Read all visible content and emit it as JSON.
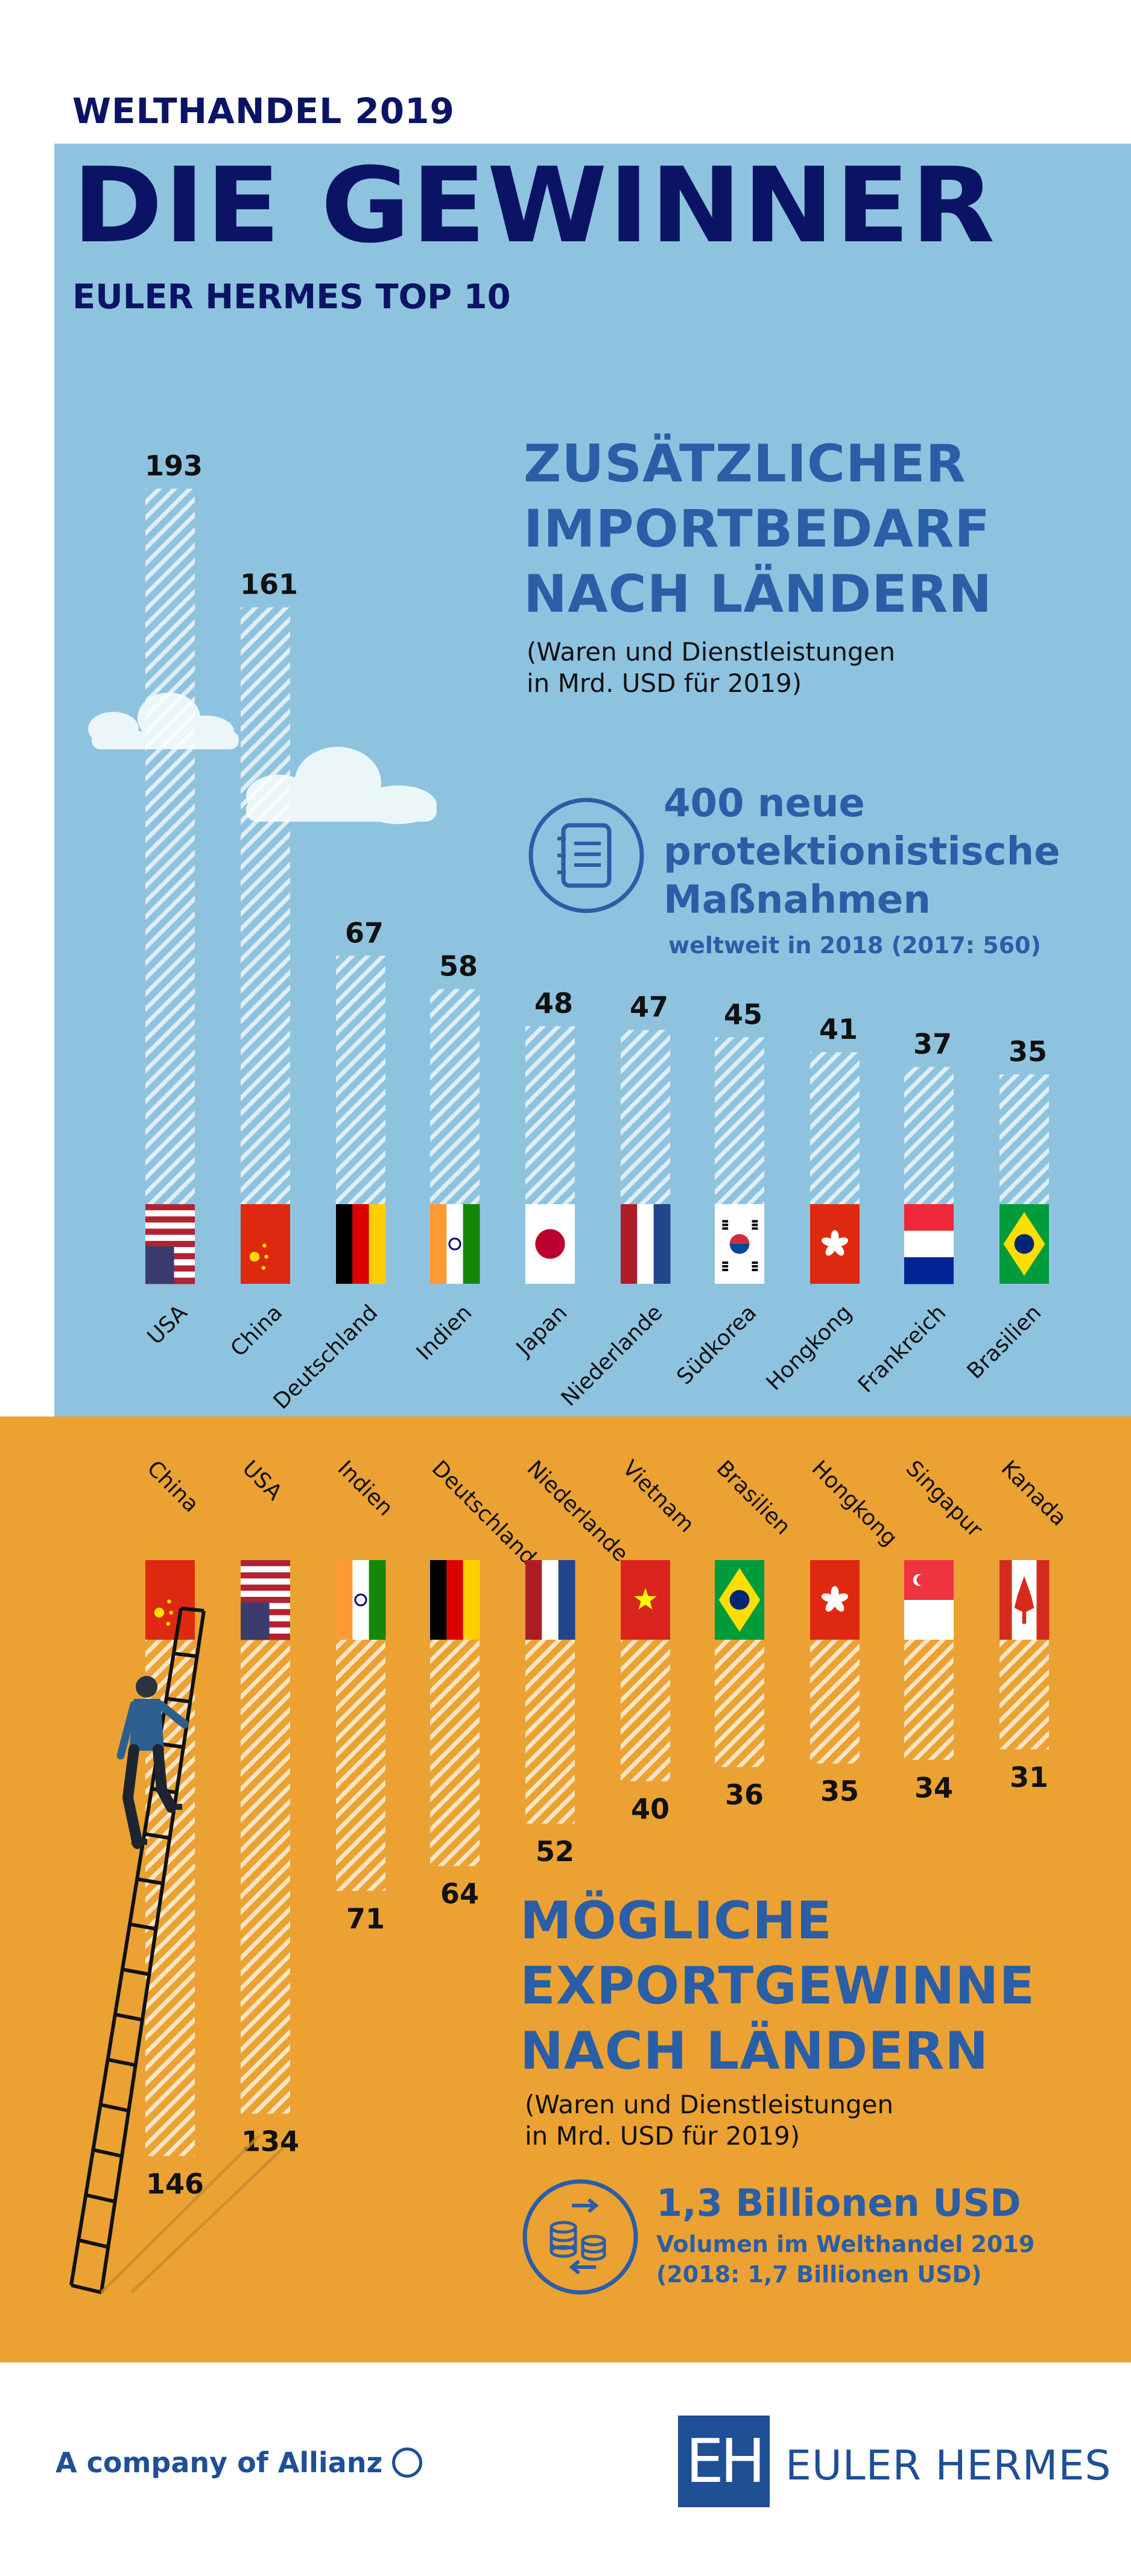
{
  "header": {
    "kicker": "WELTHANDEL 2019",
    "title": "DIE GEWINNER",
    "subtitle": "EULER HERMES TOP 10"
  },
  "import_section": {
    "heading_lines": [
      "ZUSÄTZLICHER",
      "IMPORTBEDARF",
      "NACH LÄNDERN"
    ],
    "note_lines": [
      "(Waren und Dienstleistungen",
      "in Mrd. USD für 2019)"
    ],
    "stat_title_lines": [
      "400 neue",
      "protektionistische",
      "Maßnahmen"
    ],
    "stat_sub": "weltweit in 2018 (2017: 560)",
    "stat_icon": "notebook-icon"
  },
  "export_section": {
    "heading_lines": [
      "MÖGLICHE",
      "EXPORTGEWINNE",
      "NACH LÄNDERN"
    ],
    "note_lines": [
      "(Waren und Dienstleistungen",
      "in Mrd. USD für 2019)"
    ],
    "stat_title": "1,3 Billionen USD",
    "stat_sub_lines": [
      "Volumen im Welthandel 2019",
      "(2018: 1,7 Billionen USD)"
    ],
    "stat_icon": "coins-exchange-icon"
  },
  "footer": {
    "company_prefix": "A company of ",
    "company_name": "Allianz",
    "brand": "EULER HERMES",
    "brand_logo": "EH"
  },
  "colors": {
    "navy": "#0b1464",
    "blue_text": "#2a5ea6",
    "sky": "#8ec3e0",
    "orange": "#eba233",
    "bar_stripe": "#ffffff"
  },
  "chart_data": [
    {
      "type": "bar",
      "title": "ZUSÄTZLICHER IMPORTBEDARF NACH LÄNDERN",
      "unit": "Mrd. USD",
      "categories": [
        "USA",
        "China",
        "Deutschland",
        "Indien",
        "Japan",
        "Niederlande",
        "Südkorea",
        "Hongkong",
        "Frankreich",
        "Brasilien"
      ],
      "values": [
        193,
        161,
        67,
        58,
        48,
        47,
        45,
        41,
        37,
        35
      ],
      "flags": [
        "us",
        "cn",
        "de",
        "in",
        "jp",
        "nl",
        "kr",
        "hk",
        "fr",
        "br"
      ]
    },
    {
      "type": "bar",
      "title": "MÖGLICHE EXPORTGEWINNE NACH LÄNDERN",
      "unit": "Mrd. USD",
      "categories": [
        "China",
        "USA",
        "Indien",
        "Deutschland",
        "Niederlande",
        "Vietnam",
        "Brasilien",
        "Hongkong",
        "Singapur",
        "Kanada"
      ],
      "values": [
        146,
        134,
        71,
        64,
        52,
        40,
        36,
        35,
        34,
        31
      ],
      "flags": [
        "cn",
        "us",
        "in",
        "de",
        "nl",
        "vn",
        "br",
        "hk",
        "sg",
        "ca"
      ]
    }
  ]
}
